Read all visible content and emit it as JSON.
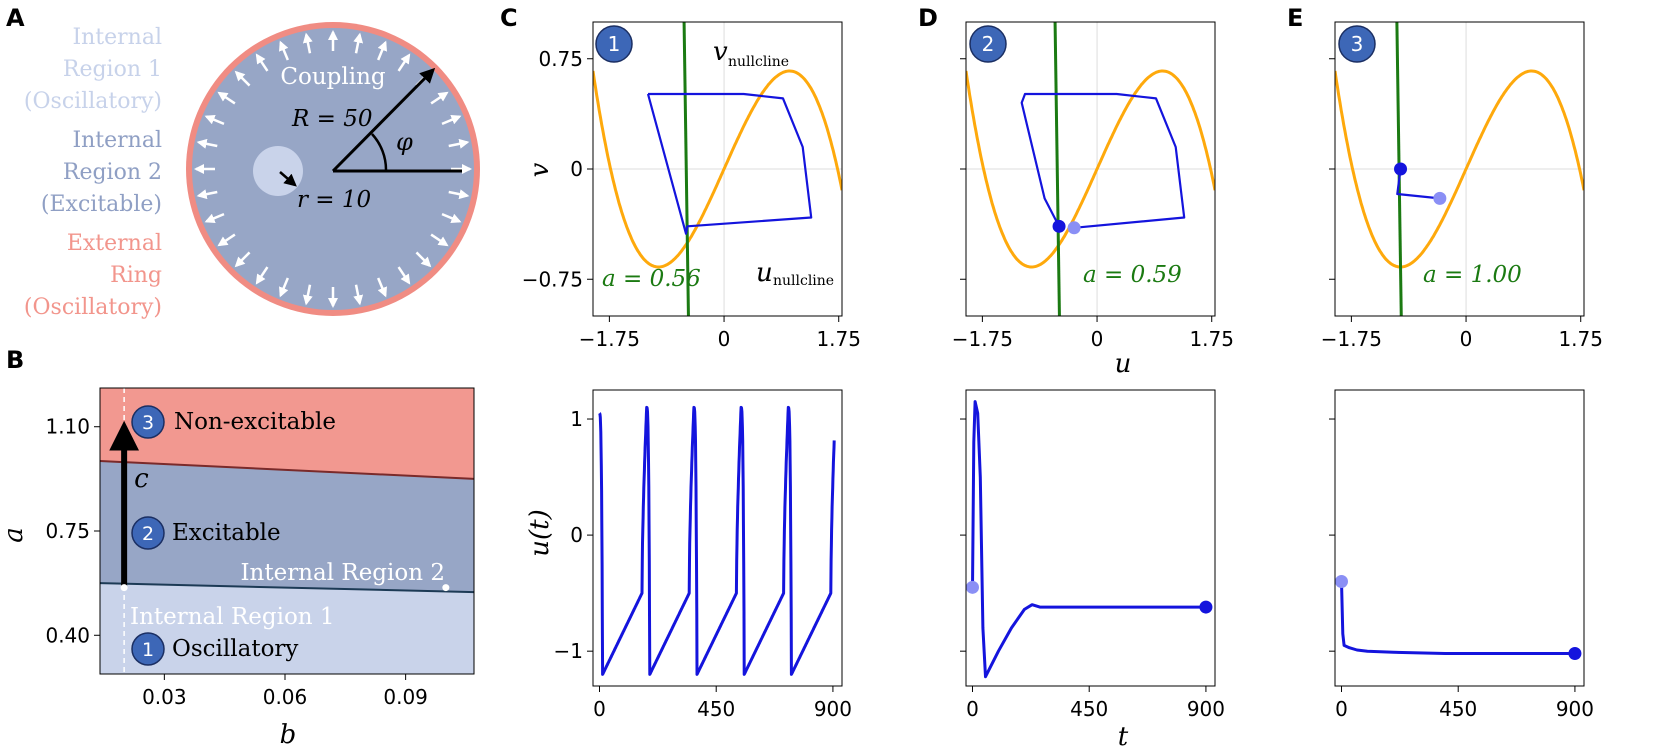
{
  "panel_letters": {
    "A": "A",
    "B": "B",
    "C": "C",
    "D": "D",
    "E": "E"
  },
  "colors": {
    "region1": "#c9d3ea",
    "region2": "#97a6c6",
    "ring": "#f08c83",
    "ring_text": "#f2958c",
    "region1_text": "#c7d2ea",
    "region2_text": "#8f9fc4",
    "nonexcitable": "#f29890",
    "badge": "#3d67b7",
    "orange": "#fea90c",
    "green": "#1b7a12",
    "blue": "#1414dd",
    "light_blue": "#8a8ff5"
  },
  "panelA": {
    "legend": {
      "region1": [
        "Internal",
        "Region 1",
        "(Oscillatory)"
      ],
      "region2": [
        "Internal",
        "Region 2",
        "(Excitable)"
      ],
      "ring": [
        "External",
        "Ring",
        "(Oscillatory)"
      ]
    },
    "labels": {
      "coupling": "Coupling",
      "R": "R = 50",
      "r": "r = 10",
      "phi": "φ"
    }
  },
  "panels_C_D_E": [
    {
      "badge": "1",
      "a_label": "a = 0.56",
      "v_nullcline_label": "v",
      "v_nullcline_sub": "nullcline",
      "u_nullcline_label": "u",
      "u_nullcline_sub": "nullcline"
    },
    {
      "badge": "2",
      "a_label": "a = 0.59"
    },
    {
      "badge": "3",
      "a_label": "a = 1.00"
    }
  ],
  "axes_labels": {
    "u": "u",
    "v": "v",
    "t": "t",
    "ut": "u(t)",
    "a": "a",
    "b": "b"
  },
  "panelB": {
    "regions": [
      {
        "badge": "3",
        "label": "Non-excitable"
      },
      {
        "badge": "2",
        "label": "Excitable"
      },
      {
        "badge": "1",
        "label": "Oscillatory"
      }
    ],
    "region_labels": {
      "internal2": "Internal Region 2",
      "internal1": "Internal Region 1"
    },
    "arrow_label": "c"
  },
  "chart_data": [
    {
      "panel": "B",
      "type": "area",
      "xlabel": "b",
      "ylabel": "a",
      "xticks": [
        "0.03",
        "0.06",
        "0.09"
      ],
      "yticks": [
        "0.40",
        "0.75",
        "1.10"
      ],
      "xlim": [
        0.014,
        0.107
      ],
      "ylim": [
        0.27,
        1.23
      ],
      "boundary_hopf": {
        "x": [
          0.014,
          0.107
        ],
        "y": [
          0.575,
          0.545
        ]
      },
      "boundary_excitability": {
        "x": [
          0.014,
          0.107
        ],
        "y": [
          0.985,
          0.925
        ]
      },
      "vertical_line_b": 0.02,
      "arrow": {
        "b": 0.02,
        "a_start": 0.56,
        "a_end": 1.1
      },
      "markers": [
        {
          "b": 0.02,
          "a": 0.56
        },
        {
          "b": 0.1,
          "a": 0.56
        }
      ]
    },
    {
      "panel": "C",
      "type": "line",
      "xlabel": "u",
      "ylabel": "v",
      "xticks": [
        "−1.75",
        "0",
        "1.75"
      ],
      "yticks": [
        "−0.75",
        "0",
        "0.75"
      ],
      "xlim": [
        -2.0,
        1.8
      ],
      "ylim": [
        -1.0,
        1.0
      ],
      "a": 0.56,
      "series": [
        {
          "curve": "u_nullcline",
          "color": "#fea90c"
        },
        {
          "curve": "v_nullcline",
          "color": "#1b7a12"
        },
        {
          "curve": "limit_cycle",
          "color": "#1414dd",
          "u": [
            -1.16,
            -0.58,
            -0.56,
            1.33,
            1.2,
            0.9,
            0.3,
            -1.1,
            -1.16
          ],
          "v": [
            0.51,
            -0.44,
            -0.39,
            -0.33,
            0.15,
            0.48,
            0.51,
            0.51,
            0.51
          ]
        }
      ]
    },
    {
      "panel": "D",
      "type": "line",
      "xlabel": "u",
      "xticks": [
        "−1.75",
        "0",
        "1.75"
      ],
      "xlim": [
        -2.0,
        1.8
      ],
      "ylim": [
        -1.0,
        1.0
      ],
      "a": 0.59,
      "series": [
        {
          "curve": "u_nullcline",
          "color": "#fea90c"
        },
        {
          "curve": "v_nullcline",
          "color": "#1b7a12"
        },
        {
          "curve": "trajectory",
          "color": "#1414dd",
          "u": [
            -0.35,
            1.33,
            1.2,
            0.9,
            0.3,
            -1.1,
            -1.15,
            -0.8,
            -0.58
          ],
          "v": [
            -0.4,
            -0.33,
            0.15,
            0.48,
            0.51,
            0.51,
            0.45,
            -0.2,
            -0.39
          ]
        },
        {
          "name": "start",
          "u": -0.35,
          "v": -0.4,
          "color": "#8a8ff5"
        },
        {
          "name": "end",
          "u": -0.58,
          "v": -0.39,
          "color": "#1414dd"
        }
      ]
    },
    {
      "panel": "E",
      "type": "line",
      "xlabel": "u",
      "xticks": [
        "−1.75",
        "0",
        "1.75"
      ],
      "xlim": [
        -2.0,
        1.8
      ],
      "ylim": [
        -1.0,
        1.0
      ],
      "a": 1.0,
      "series": [
        {
          "curve": "u_nullcline",
          "color": "#fea90c"
        },
        {
          "curve": "v_nullcline",
          "color": "#1b7a12"
        },
        {
          "curve": "trajectory",
          "color": "#1414dd",
          "u": [
            -0.4,
            -1.05,
            -1.0
          ],
          "v": [
            -0.2,
            -0.17,
            0.0
          ]
        },
        {
          "name": "start",
          "u": -0.4,
          "v": -0.2,
          "color": "#8a8ff5"
        },
        {
          "name": "end",
          "u": -1.0,
          "v": 0.0,
          "color": "#1414dd"
        }
      ]
    },
    {
      "panel": "C-bottom",
      "type": "line",
      "xlabel": "",
      "ylabel": "u(t)",
      "xticks": [
        "0",
        "450",
        "900"
      ],
      "yticks": [
        "−1",
        "0",
        "1"
      ],
      "xlim": [
        -25,
        935
      ],
      "ylim": [
        -1.3,
        1.25
      ],
      "period": 182,
      "series": [
        {
          "name": "u(t)",
          "color": "#1414dd",
          "t_range": [
            0,
            905
          ]
        }
      ]
    },
    {
      "panel": "D-bottom",
      "type": "line",
      "xlabel": "t",
      "xticks": [
        "0",
        "450",
        "900"
      ],
      "xlim": [
        -25,
        935
      ],
      "ylim": [
        -1.3,
        1.25
      ],
      "series": [
        {
          "name": "u(t)",
          "color": "#1414dd",
          "t": [
            0,
            5,
            10,
            20,
            30,
            40,
            50,
            100,
            150,
            200,
            230,
            260,
            300,
            900
          ],
          "u": [
            -0.45,
            0.8,
            1.15,
            1.05,
            0.5,
            -0.8,
            -1.22,
            -1.0,
            -0.8,
            -0.64,
            -0.6,
            -0.62,
            -0.62,
            -0.62
          ]
        },
        {
          "name": "start",
          "t": 0,
          "u": -0.45,
          "color": "#8a8ff5"
        },
        {
          "name": "end",
          "t": 900,
          "u": -0.62,
          "color": "#1414dd"
        }
      ]
    },
    {
      "panel": "E-bottom",
      "type": "line",
      "xlabel": "",
      "xticks": [
        "0",
        "450",
        "900"
      ],
      "xlim": [
        -25,
        935
      ],
      "ylim": [
        -1.3,
        1.25
      ],
      "series": [
        {
          "name": "u(t)",
          "color": "#1414dd",
          "t": [
            0,
            5,
            10,
            30,
            60,
            100,
            200,
            400,
            900
          ],
          "u": [
            -0.4,
            -0.85,
            -0.95,
            -0.97,
            -0.99,
            -1.0,
            -1.01,
            -1.02,
            -1.02
          ]
        },
        {
          "name": "start",
          "t": 0,
          "u": -0.4,
          "color": "#8a8ff5"
        },
        {
          "name": "end",
          "t": 900,
          "u": -1.02,
          "color": "#1414dd"
        }
      ]
    }
  ]
}
